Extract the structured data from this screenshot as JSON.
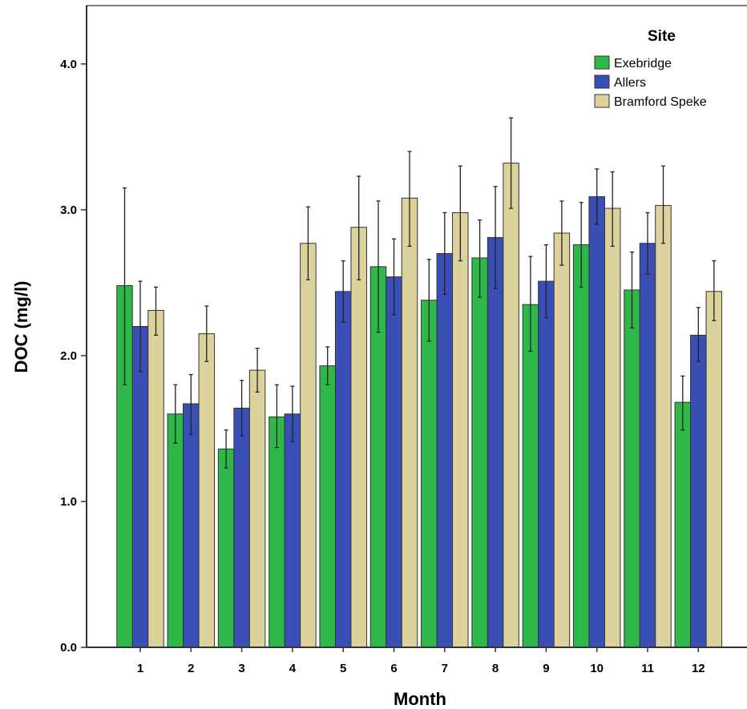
{
  "chart_data": {
    "type": "bar",
    "xlabel": "Month",
    "ylabel": "DOC (mg/l)",
    "ylim": [
      0,
      4.4
    ],
    "yticks": [
      "0.0",
      "1.0",
      "2.0",
      "3.0",
      "4.0"
    ],
    "categories": [
      "1",
      "2",
      "3",
      "4",
      "5",
      "6",
      "7",
      "8",
      "9",
      "10",
      "11",
      "12"
    ],
    "legend": {
      "title": "Site",
      "placement": "top-right"
    },
    "error_bars": true,
    "series": [
      {
        "name": "Exebridge",
        "color": "#2fb84a",
        "values": [
          2.48,
          1.6,
          1.36,
          1.58,
          1.93,
          2.61,
          2.38,
          2.67,
          2.35,
          2.76,
          2.45,
          1.68
        ],
        "err_low": [
          1.8,
          1.4,
          1.23,
          1.37,
          1.8,
          2.16,
          2.1,
          2.4,
          2.03,
          2.47,
          2.19,
          1.49
        ],
        "err_high": [
          3.15,
          1.8,
          1.49,
          1.8,
          2.06,
          3.06,
          2.66,
          2.93,
          2.68,
          3.05,
          2.71,
          1.86
        ]
      },
      {
        "name": "Allers",
        "color": "#3a4fb5",
        "values": [
          2.2,
          1.67,
          1.64,
          1.6,
          2.44,
          2.54,
          2.7,
          2.81,
          2.51,
          3.09,
          2.77,
          2.14
        ],
        "err_low": [
          1.89,
          1.46,
          1.45,
          1.41,
          2.23,
          2.28,
          2.42,
          2.46,
          2.26,
          2.9,
          2.56,
          1.96
        ],
        "err_high": [
          2.51,
          1.87,
          1.83,
          1.79,
          2.65,
          2.8,
          2.98,
          3.16,
          2.76,
          3.28,
          2.98,
          2.33
        ]
      },
      {
        "name": "Bramford Speke",
        "color": "#dcd29c",
        "values": [
          2.31,
          2.15,
          1.9,
          2.77,
          2.88,
          3.08,
          2.98,
          3.32,
          2.84,
          3.01,
          3.03,
          2.44
        ],
        "err_low": [
          2.14,
          1.96,
          1.75,
          2.52,
          2.52,
          2.75,
          2.65,
          3.01,
          2.62,
          2.75,
          2.77,
          2.24
        ],
        "err_high": [
          2.47,
          2.34,
          2.05,
          3.02,
          3.23,
          3.4,
          3.3,
          3.63,
          3.06,
          3.26,
          3.3,
          2.65
        ]
      }
    ]
  }
}
